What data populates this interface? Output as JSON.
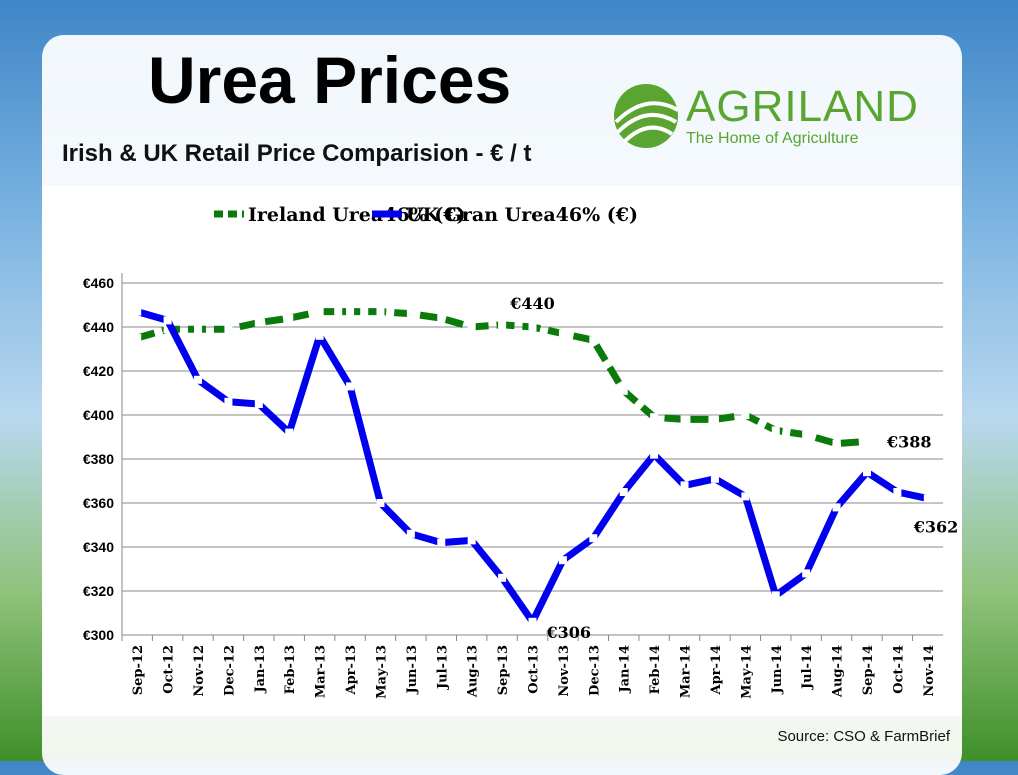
{
  "title": "Urea Prices",
  "subtitle": "Irish & UK Retail Price Comparision - € / t",
  "logo": {
    "name": "AGRILAND",
    "tagline": "The Home of Agriculture"
  },
  "source": "Source: CSO & FarmBrief",
  "colors": {
    "ireland": "#0a7a0a",
    "uk": "#0000ee"
  },
  "chart_data": {
    "type": "line",
    "title": "",
    "xlabel": "",
    "ylabel": "",
    "ylim": [
      300,
      460
    ],
    "yticks": [
      300,
      320,
      340,
      360,
      380,
      400,
      420,
      440,
      460
    ],
    "ytick_labels": [
      "€300",
      "€320",
      "€340",
      "€360",
      "€380",
      "€400",
      "€420",
      "€440",
      "€460"
    ],
    "grid": true,
    "legend_position": "top",
    "x": [
      "Sep-12",
      "Oct-12",
      "Nov-12",
      "Dec-12",
      "Jan-13",
      "Feb-13",
      "Mar-13",
      "Apr-13",
      "May-13",
      "Jun-13",
      "Jul-13",
      "Aug-13",
      "Sep-13",
      "Oct-13",
      "Nov-13",
      "Dec-13",
      "Jan-14",
      "Feb-14",
      "Mar-14",
      "Apr-14",
      "May-14",
      "Jun-14",
      "Jul-14",
      "Aug-14",
      "Sep-14",
      "Oct-14",
      "Nov-14"
    ],
    "series": [
      {
        "name": "Ireland Urea46% (€)",
        "style": "dashed",
        "values": [
          435,
          439,
          439,
          439,
          442,
          444,
          447,
          447,
          447,
          446,
          444,
          440,
          441,
          440,
          437,
          434,
          411,
          399,
          398,
          398,
          400,
          393,
          391,
          387,
          388,
          null,
          null
        ]
      },
      {
        "name": "UK Gran Urea46% (€)",
        "style": "solid",
        "values": [
          447,
          443,
          416,
          406,
          405,
          392,
          436,
          413,
          360,
          346,
          342,
          343,
          326,
          306,
          334,
          344,
          365,
          382,
          368,
          371,
          363,
          318,
          328,
          358,
          374,
          365,
          362
        ]
      }
    ],
    "annotations": [
      {
        "text": "€440",
        "series": 0,
        "x": "Oct-13"
      },
      {
        "text": "€388",
        "series": 0,
        "x": "Sep-14"
      },
      {
        "text": "€306",
        "series": 1,
        "x": "Oct-13"
      },
      {
        "text": "€362",
        "series": 1,
        "x": "Nov-14"
      }
    ]
  }
}
